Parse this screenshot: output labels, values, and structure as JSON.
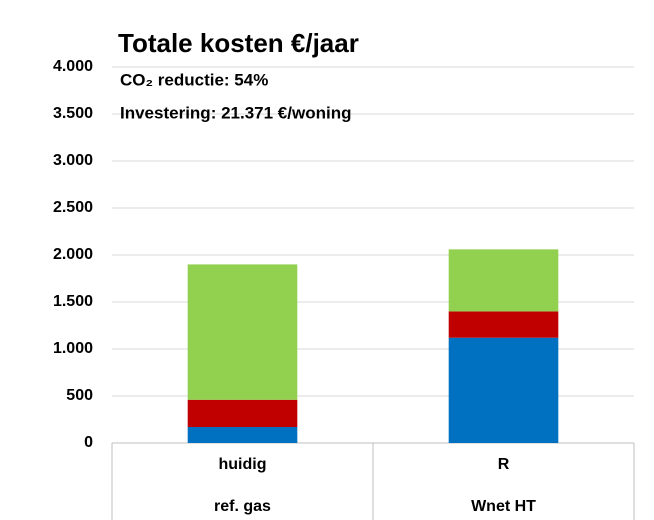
{
  "chart_data": {
    "type": "stacked_bar",
    "title": "Totale kosten €/jaar",
    "annotations": [
      "CO₂ reductie: 54%",
      "Investering: 21.371 €/woning"
    ],
    "categories": [
      [
        "huidig",
        "ref. gas"
      ],
      [
        "R",
        "Wnet HT"
      ]
    ],
    "series": [
      {
        "color": "#0070c0",
        "values": [
          170,
          1120
        ]
      },
      {
        "color": "#c00000",
        "values": [
          290,
          280
        ]
      },
      {
        "color": "#92d050",
        "values": [
          1440,
          660
        ]
      }
    ],
    "ylim": [
      0,
      4000
    ],
    "yticks": [
      0,
      500,
      {
        "value": 1000,
        "label": "1.000"
      },
      {
        "value": 1500,
        "label": "1.500"
      },
      {
        "value": 2000,
        "label": "2.000"
      },
      {
        "value": 2500,
        "label": "2.500"
      },
      {
        "value": 3000,
        "label": "3.000"
      },
      {
        "value": 3500,
        "label": "3.500"
      },
      {
        "value": 4000,
        "label": "4.000"
      }
    ],
    "grid": true
  }
}
